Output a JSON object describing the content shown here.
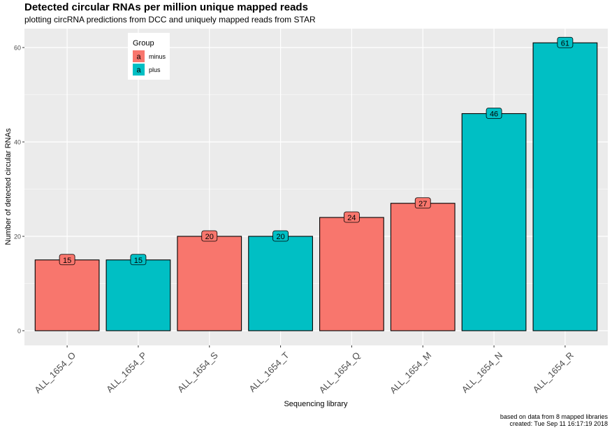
{
  "title": "Detected circular RNAs per million unique mapped reads",
  "subtitle": "plotting circRNA predictions from DCC and uniquely mapped reads from STAR",
  "caption_line1": "based on data from 8 mapped libraries",
  "caption_line2": "created: Tue Sep 11 16:17:19 2018",
  "colors": {
    "minus": "#F8766D",
    "plus": "#00BFC4",
    "panel": "#EBEBEB",
    "grid": "#FFFFFF"
  },
  "chart_data": {
    "type": "bar",
    "title": "Detected circular RNAs per million unique mapped reads",
    "xlabel": "Sequencing library",
    "ylabel": "Number of detected circular RNAs",
    "ylim": [
      0,
      63
    ],
    "yticks": [
      0,
      20,
      40,
      60
    ],
    "categories": [
      "ALL_1654_O",
      "ALL_1654_P",
      "ALL_1654_S",
      "ALL_1654_T",
      "ALL_1654_Q",
      "ALL_1654_M",
      "ALL_1654_N",
      "ALL_1654_R"
    ],
    "values": [
      15,
      15,
      20,
      20,
      24,
      27,
      46,
      61
    ],
    "groups": [
      "minus",
      "plus",
      "minus",
      "plus",
      "minus",
      "minus",
      "plus",
      "plus"
    ],
    "labels": [
      "15",
      "15",
      "20",
      "20",
      "24",
      "27",
      "46",
      "61"
    ],
    "legend": {
      "title": "Group",
      "position": "top-left",
      "key_glyph": "a",
      "items": [
        {
          "name": "minus",
          "color": "#F8766D"
        },
        {
          "name": "plus",
          "color": "#00BFC4"
        }
      ]
    },
    "grid": true
  }
}
